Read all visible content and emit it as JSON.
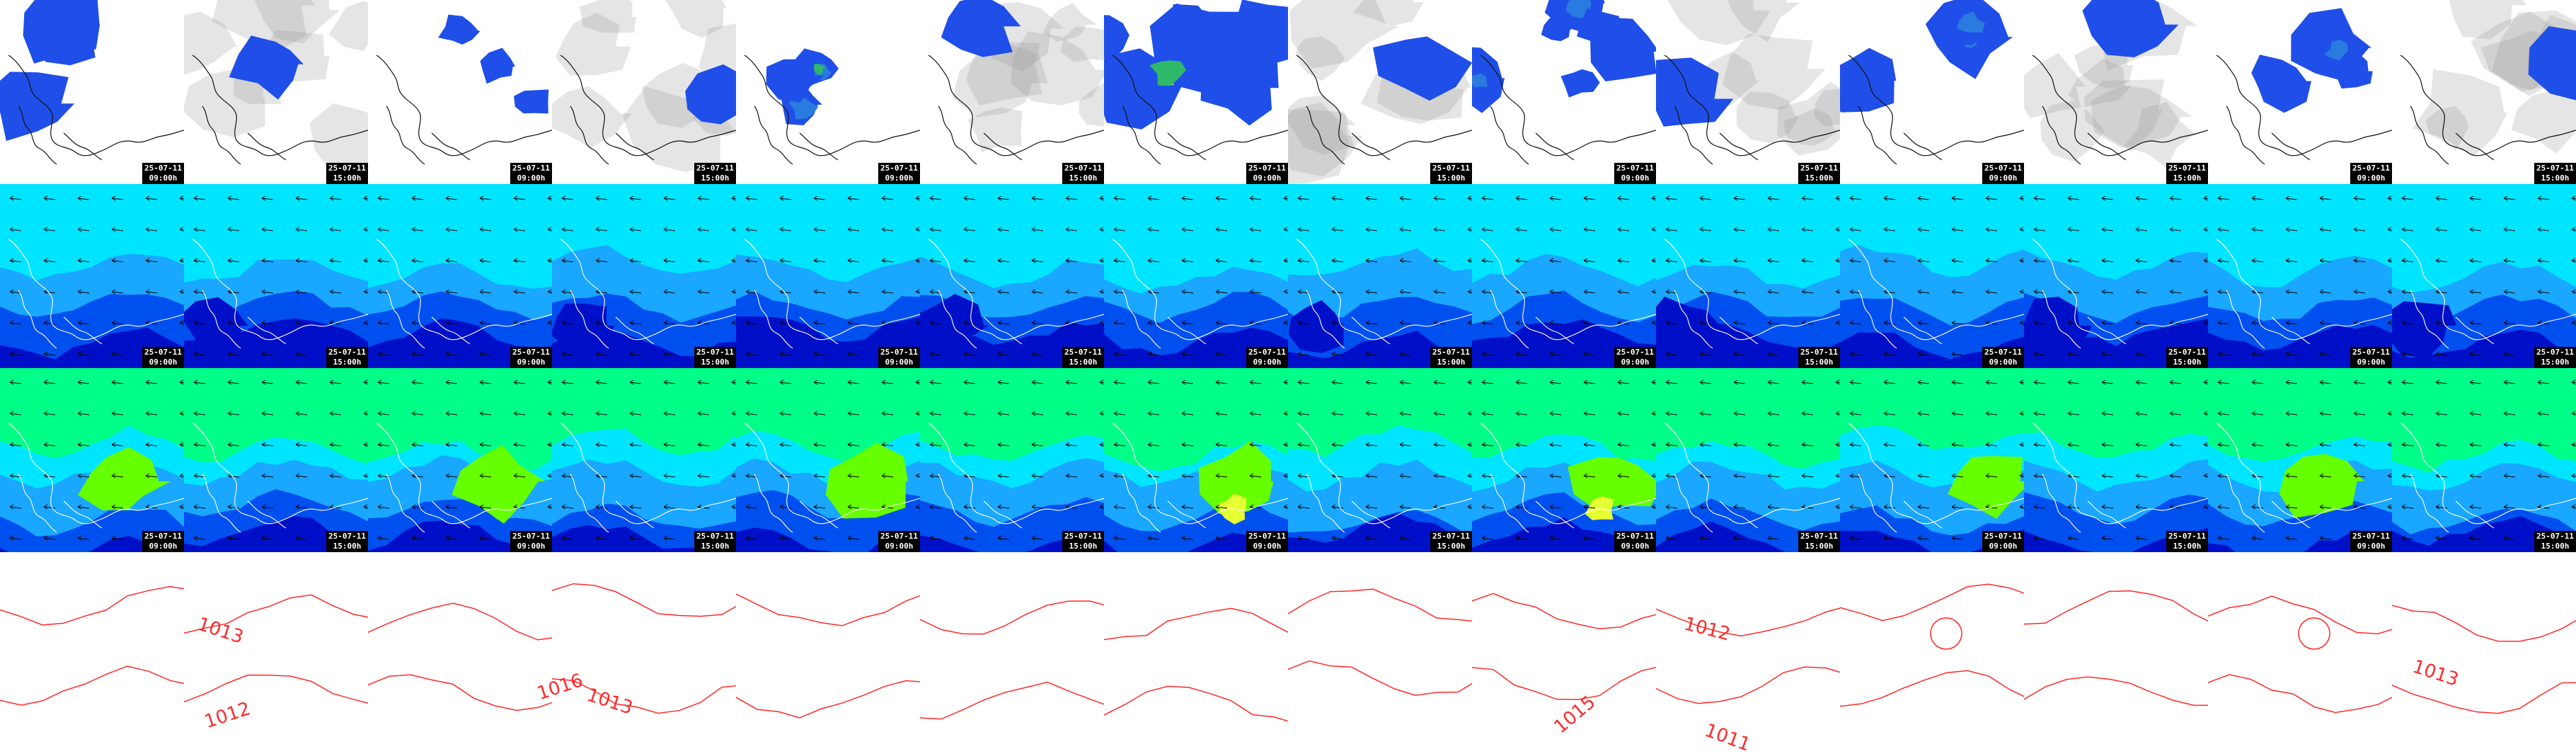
{
  "grid": {
    "columns": 14,
    "rows": 4
  },
  "labels": {
    "date": "25-07-11",
    "times": [
      "09:00h",
      "15:00h",
      "09:00h",
      "15:00h",
      "09:00h",
      "15:00h",
      "09:00h",
      "15:00h",
      "09:00h",
      "15:00h",
      "09:00h",
      "15:00h",
      "09:00h",
      "15:00h"
    ]
  },
  "rows": [
    {
      "name": "precipitation-cloud-row",
      "scheme": "precip"
    },
    {
      "name": "wind-speed-row-1",
      "scheme": "wind1"
    },
    {
      "name": "wind-speed-row-2",
      "scheme": "wind2"
    },
    {
      "name": "pressure-isobar-row",
      "scheme": "isobar"
    }
  ],
  "colors": {
    "precip_blue": "#1f4fe8",
    "precip_mid": "#2a7be0",
    "precip_green": "#2fb86a",
    "cyan": "#00e5ff",
    "light_blue": "#1aa7ff",
    "mid_blue": "#0050f0",
    "deep_blue": "#0010c8",
    "green": "#00ff88",
    "lime": "#66ff00",
    "yellow": "#e6ff33",
    "isobar": "#ff2a2a",
    "coast": "#111111",
    "coast_alt": "#ffffff"
  },
  "isobar_labels": [
    "1013",
    "1012",
    "1016",
    "1013",
    "1015",
    "1012",
    "1011",
    "1013"
  ]
}
